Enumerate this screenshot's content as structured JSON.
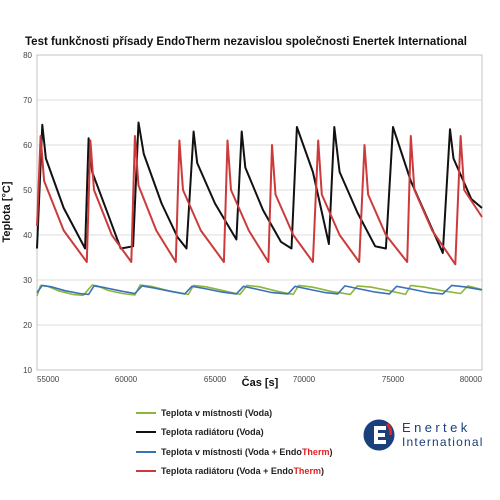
{
  "chart_data": {
    "type": "line",
    "title": "Test funkčnosti přísady EndoTherm nezavislou společnosti Enertek International",
    "xlabel": "Čas [s]",
    "ylabel": "Teplota [°C]",
    "xlim": [
      55000,
      80000
    ],
    "ylim": [
      10,
      80
    ],
    "xticks": [
      55000,
      60000,
      65000,
      70000,
      75000,
      80000
    ],
    "yticks": [
      10,
      20,
      30,
      40,
      50,
      60,
      70,
      80
    ],
    "grid": "horizontal",
    "legend_position": "bottom",
    "series": [
      {
        "name": "Teplota v místnosti (Voda)",
        "color": "#8db53c",
        "x": [
          55000,
          55200,
          55600,
          56200,
          57000,
          57600,
          58100,
          58400,
          59000,
          59800,
          60500,
          60800,
          61400,
          62400,
          63500,
          63800,
          64500,
          65500,
          66400,
          66800,
          67500,
          68500,
          69400,
          69700,
          70500,
          71500,
          72600,
          73000,
          73800,
          74800,
          75700,
          76000,
          76800,
          77800,
          78800,
          79200,
          80000
        ],
        "values": [
          26.5,
          28.8,
          28.6,
          27.6,
          26.8,
          26.6,
          28.9,
          28.7,
          27.7,
          27.0,
          26.7,
          28.9,
          28.6,
          27.6,
          26.8,
          28.8,
          28.5,
          27.6,
          26.8,
          28.8,
          28.5,
          27.5,
          26.8,
          28.8,
          28.4,
          27.5,
          26.8,
          28.7,
          28.4,
          27.6,
          26.8,
          28.8,
          28.4,
          27.6,
          27.0,
          28.7,
          27.9
        ]
      },
      {
        "name": "Teplota radiátoru (Voda)",
        "color": "#111111",
        "x": [
          55000,
          55300,
          55500,
          56500,
          57700,
          57900,
          58100,
          59000,
          59700,
          60400,
          60700,
          61000,
          62000,
          62900,
          63400,
          63800,
          64000,
          65000,
          66200,
          66500,
          66700,
          67700,
          68700,
          69300,
          69600,
          70500,
          71400,
          71700,
          72000,
          73000,
          74000,
          74600,
          75000,
          76000,
          77800,
          78200,
          78400,
          79400,
          80000
        ],
        "values": [
          37,
          64.5,
          57,
          46,
          37,
          61.5,
          54,
          44.5,
          37,
          37.5,
          65,
          58,
          47,
          39.5,
          37,
          63,
          56,
          47,
          39,
          63,
          55,
          45.5,
          38.5,
          37,
          64,
          54,
          38,
          64,
          54,
          45,
          37.5,
          37,
          64,
          52,
          36,
          63.5,
          57,
          48,
          46
        ]
      },
      {
        "name": "Teplota v místnosti (Voda + EndoTherm)",
        "color": "#3a72b8",
        "x": [
          55000,
          55300,
          55800,
          56600,
          57400,
          57900,
          58200,
          58800,
          59800,
          60500,
          60900,
          61600,
          62600,
          63300,
          63700,
          64400,
          65400,
          66200,
          66600,
          67300,
          68200,
          69100,
          69500,
          70200,
          71200,
          71900,
          72300,
          73000,
          74000,
          74800,
          75200,
          76000,
          77000,
          77800,
          78300,
          79000,
          80000
        ],
        "values": [
          27.2,
          28.8,
          28.5,
          27.6,
          27.0,
          26.8,
          28.7,
          28.3,
          27.5,
          27.0,
          28.7,
          28.2,
          27.4,
          26.9,
          28.6,
          28.1,
          27.3,
          26.9,
          28.6,
          28.0,
          27.2,
          26.9,
          28.6,
          28.0,
          27.2,
          26.9,
          28.7,
          28.1,
          27.3,
          26.9,
          28.6,
          28.0,
          27.2,
          26.9,
          28.8,
          28.5,
          27.8
        ]
      },
      {
        "name": "Teplota radiátoru (Voda + EndoTherm)",
        "color": "#cc3b3b",
        "x": [
          55000,
          55200,
          55400,
          56500,
          57800,
          58000,
          58200,
          59200,
          60300,
          60500,
          60700,
          61700,
          62800,
          63000,
          63200,
          64200,
          65500,
          65700,
          65900,
          66900,
          68000,
          68200,
          68400,
          69400,
          70500,
          70800,
          71000,
          72000,
          73100,
          73400,
          73600,
          74600,
          75800,
          76000,
          76200,
          77200,
          78500,
          78800,
          79000,
          80000
        ],
        "values": [
          42,
          62,
          52,
          41,
          34,
          61,
          50,
          40,
          34,
          62,
          51,
          41,
          34,
          61,
          50,
          41,
          34,
          61,
          50,
          41,
          34,
          60,
          49,
          40,
          34,
          61,
          49,
          40,
          34,
          60,
          49,
          40,
          34,
          62,
          50,
          41,
          33.5,
          62,
          50,
          44
        ]
      }
    ]
  },
  "legend": {
    "items": [
      {
        "label": "Teplota v místnosti (Voda)",
        "suffix": ""
      },
      {
        "label": "Teplota radiátoru (Voda)",
        "suffix": ""
      },
      {
        "label": "Teplota v místnosti (Voda + Endo",
        "suffix": ")"
      },
      {
        "label": "Teplota radiátoru (Voda + Endo",
        "suffix": ")"
      }
    ],
    "brand_word": "Therm"
  },
  "logo": {
    "line1": "Enertek",
    "line2": "International"
  }
}
